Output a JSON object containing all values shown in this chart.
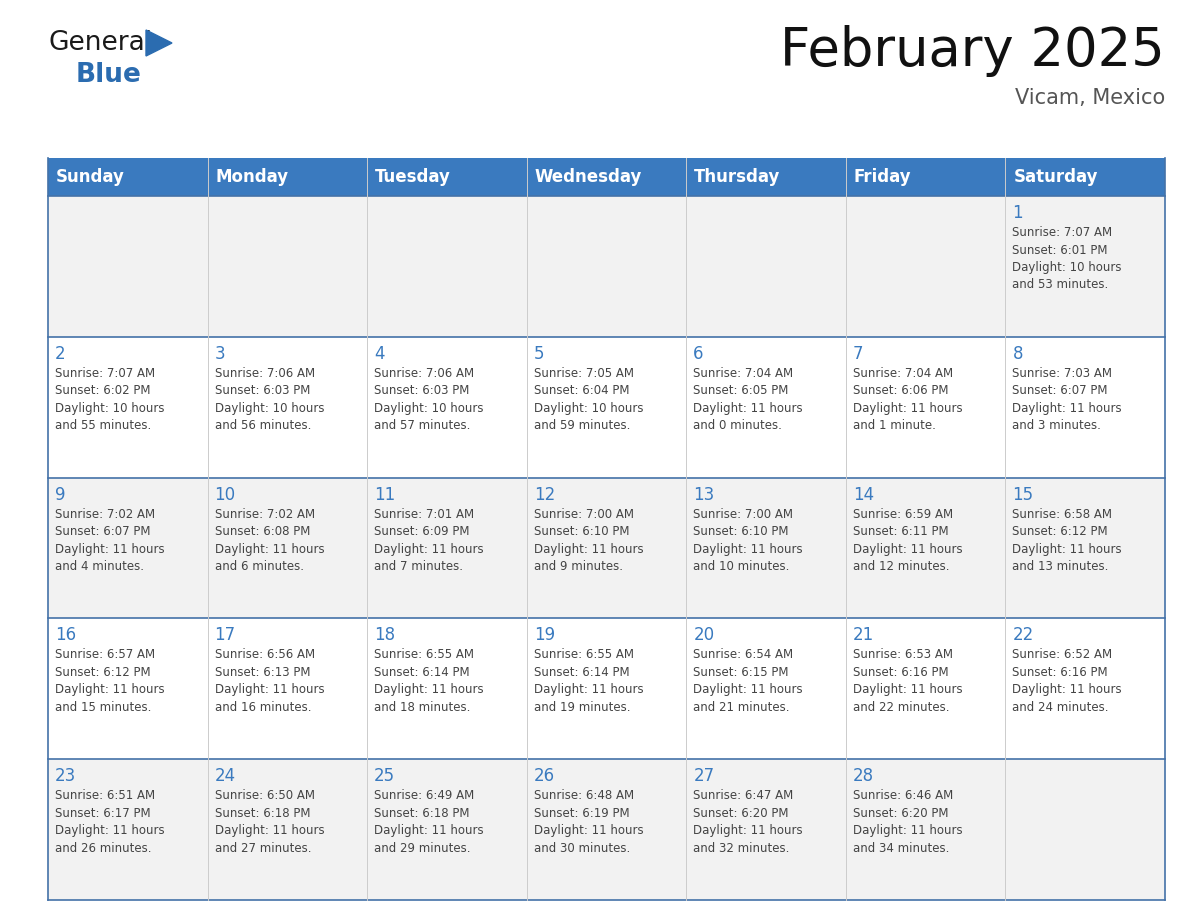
{
  "title": "February 2025",
  "subtitle": "Vicam, Mexico",
  "header_color": "#3a7abf",
  "header_text_color": "#ffffff",
  "cell_border_color": "#4472a8",
  "day_number_color": "#3a7abf",
  "cell_text_color": "#444444",
  "row_colors": [
    "#f0f0f0",
    "#ffffff"
  ],
  "days_of_week": [
    "Sunday",
    "Monday",
    "Tuesday",
    "Wednesday",
    "Thursday",
    "Friday",
    "Saturday"
  ],
  "weeks": [
    [
      {
        "day": "",
        "info": ""
      },
      {
        "day": "",
        "info": ""
      },
      {
        "day": "",
        "info": ""
      },
      {
        "day": "",
        "info": ""
      },
      {
        "day": "",
        "info": ""
      },
      {
        "day": "",
        "info": ""
      },
      {
        "day": "1",
        "info": "Sunrise: 7:07 AM\nSunset: 6:01 PM\nDaylight: 10 hours\nand 53 minutes."
      }
    ],
    [
      {
        "day": "2",
        "info": "Sunrise: 7:07 AM\nSunset: 6:02 PM\nDaylight: 10 hours\nand 55 minutes."
      },
      {
        "day": "3",
        "info": "Sunrise: 7:06 AM\nSunset: 6:03 PM\nDaylight: 10 hours\nand 56 minutes."
      },
      {
        "day": "4",
        "info": "Sunrise: 7:06 AM\nSunset: 6:03 PM\nDaylight: 10 hours\nand 57 minutes."
      },
      {
        "day": "5",
        "info": "Sunrise: 7:05 AM\nSunset: 6:04 PM\nDaylight: 10 hours\nand 59 minutes."
      },
      {
        "day": "6",
        "info": "Sunrise: 7:04 AM\nSunset: 6:05 PM\nDaylight: 11 hours\nand 0 minutes."
      },
      {
        "day": "7",
        "info": "Sunrise: 7:04 AM\nSunset: 6:06 PM\nDaylight: 11 hours\nand 1 minute."
      },
      {
        "day": "8",
        "info": "Sunrise: 7:03 AM\nSunset: 6:07 PM\nDaylight: 11 hours\nand 3 minutes."
      }
    ],
    [
      {
        "day": "9",
        "info": "Sunrise: 7:02 AM\nSunset: 6:07 PM\nDaylight: 11 hours\nand 4 minutes."
      },
      {
        "day": "10",
        "info": "Sunrise: 7:02 AM\nSunset: 6:08 PM\nDaylight: 11 hours\nand 6 minutes."
      },
      {
        "day": "11",
        "info": "Sunrise: 7:01 AM\nSunset: 6:09 PM\nDaylight: 11 hours\nand 7 minutes."
      },
      {
        "day": "12",
        "info": "Sunrise: 7:00 AM\nSunset: 6:10 PM\nDaylight: 11 hours\nand 9 minutes."
      },
      {
        "day": "13",
        "info": "Sunrise: 7:00 AM\nSunset: 6:10 PM\nDaylight: 11 hours\nand 10 minutes."
      },
      {
        "day": "14",
        "info": "Sunrise: 6:59 AM\nSunset: 6:11 PM\nDaylight: 11 hours\nand 12 minutes."
      },
      {
        "day": "15",
        "info": "Sunrise: 6:58 AM\nSunset: 6:12 PM\nDaylight: 11 hours\nand 13 minutes."
      }
    ],
    [
      {
        "day": "16",
        "info": "Sunrise: 6:57 AM\nSunset: 6:12 PM\nDaylight: 11 hours\nand 15 minutes."
      },
      {
        "day": "17",
        "info": "Sunrise: 6:56 AM\nSunset: 6:13 PM\nDaylight: 11 hours\nand 16 minutes."
      },
      {
        "day": "18",
        "info": "Sunrise: 6:55 AM\nSunset: 6:14 PM\nDaylight: 11 hours\nand 18 minutes."
      },
      {
        "day": "19",
        "info": "Sunrise: 6:55 AM\nSunset: 6:14 PM\nDaylight: 11 hours\nand 19 minutes."
      },
      {
        "day": "20",
        "info": "Sunrise: 6:54 AM\nSunset: 6:15 PM\nDaylight: 11 hours\nand 21 minutes."
      },
      {
        "day": "21",
        "info": "Sunrise: 6:53 AM\nSunset: 6:16 PM\nDaylight: 11 hours\nand 22 minutes."
      },
      {
        "day": "22",
        "info": "Sunrise: 6:52 AM\nSunset: 6:16 PM\nDaylight: 11 hours\nand 24 minutes."
      }
    ],
    [
      {
        "day": "23",
        "info": "Sunrise: 6:51 AM\nSunset: 6:17 PM\nDaylight: 11 hours\nand 26 minutes."
      },
      {
        "day": "24",
        "info": "Sunrise: 6:50 AM\nSunset: 6:18 PM\nDaylight: 11 hours\nand 27 minutes."
      },
      {
        "day": "25",
        "info": "Sunrise: 6:49 AM\nSunset: 6:18 PM\nDaylight: 11 hours\nand 29 minutes."
      },
      {
        "day": "26",
        "info": "Sunrise: 6:48 AM\nSunset: 6:19 PM\nDaylight: 11 hours\nand 30 minutes."
      },
      {
        "day": "27",
        "info": "Sunrise: 6:47 AM\nSunset: 6:20 PM\nDaylight: 11 hours\nand 32 minutes."
      },
      {
        "day": "28",
        "info": "Sunrise: 6:46 AM\nSunset: 6:20 PM\nDaylight: 11 hours\nand 34 minutes."
      },
      {
        "day": "",
        "info": ""
      }
    ]
  ],
  "logo_general_color": "#1a1a1a",
  "logo_blue_color": "#2b6cb0",
  "title_fontsize": 38,
  "subtitle_fontsize": 15,
  "header_fontsize": 12,
  "day_number_fontsize": 12,
  "cell_text_fontsize": 8.5
}
